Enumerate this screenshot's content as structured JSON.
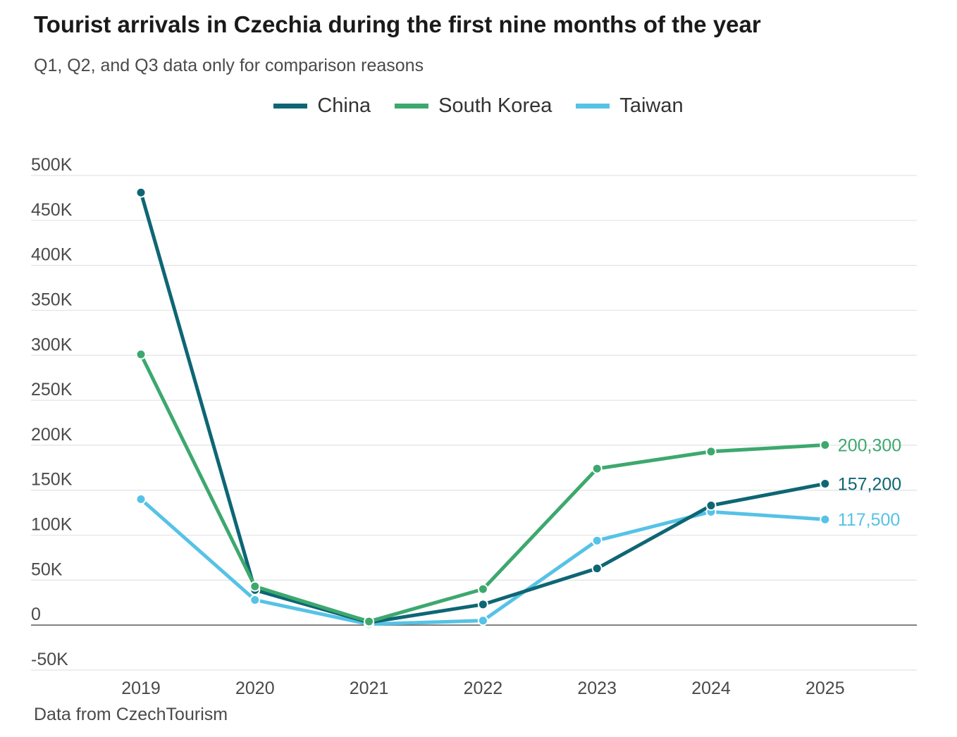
{
  "header": {
    "title": "Tourist arrivals in Czechia during the first nine months of the year",
    "subtitle": "Q1, Q2, and Q3 data only for comparison reasons"
  },
  "footer": {
    "source": "Data from CzechTourism"
  },
  "chart_data": {
    "type": "line",
    "title": "Tourist arrivals in Czechia during the first nine months of the year",
    "subtitle": "Q1, Q2, and Q3 data only for comparison reasons",
    "xlabel": "",
    "ylabel": "",
    "categories": [
      "2019",
      "2020",
      "2021",
      "2022",
      "2023",
      "2024",
      "2025"
    ],
    "ylim": [
      -50000,
      500000
    ],
    "yticks": [
      -50000,
      0,
      50000,
      100000,
      150000,
      200000,
      250000,
      300000,
      350000,
      400000,
      450000,
      500000
    ],
    "ytick_labels": [
      "-50K",
      "0",
      "50K",
      "100K",
      "150K",
      "200K",
      "250K",
      "300K",
      "350K",
      "400K",
      "450K",
      "500K"
    ],
    "grid": true,
    "legend_position": "top-center",
    "series": [
      {
        "name": "China",
        "color": "#0e6674",
        "values": [
          481000,
          39000,
          3000,
          23000,
          63000,
          133000,
          157200
        ],
        "end_label": "157,200"
      },
      {
        "name": "South Korea",
        "color": "#3da86e",
        "values": [
          301000,
          43000,
          4000,
          40000,
          174000,
          193000,
          200300
        ],
        "end_label": "200,300"
      },
      {
        "name": "Taiwan",
        "color": "#56c2e6",
        "values": [
          140000,
          28000,
          1000,
          5000,
          94000,
          126000,
          117500
        ],
        "end_label": "117,500"
      }
    ]
  }
}
